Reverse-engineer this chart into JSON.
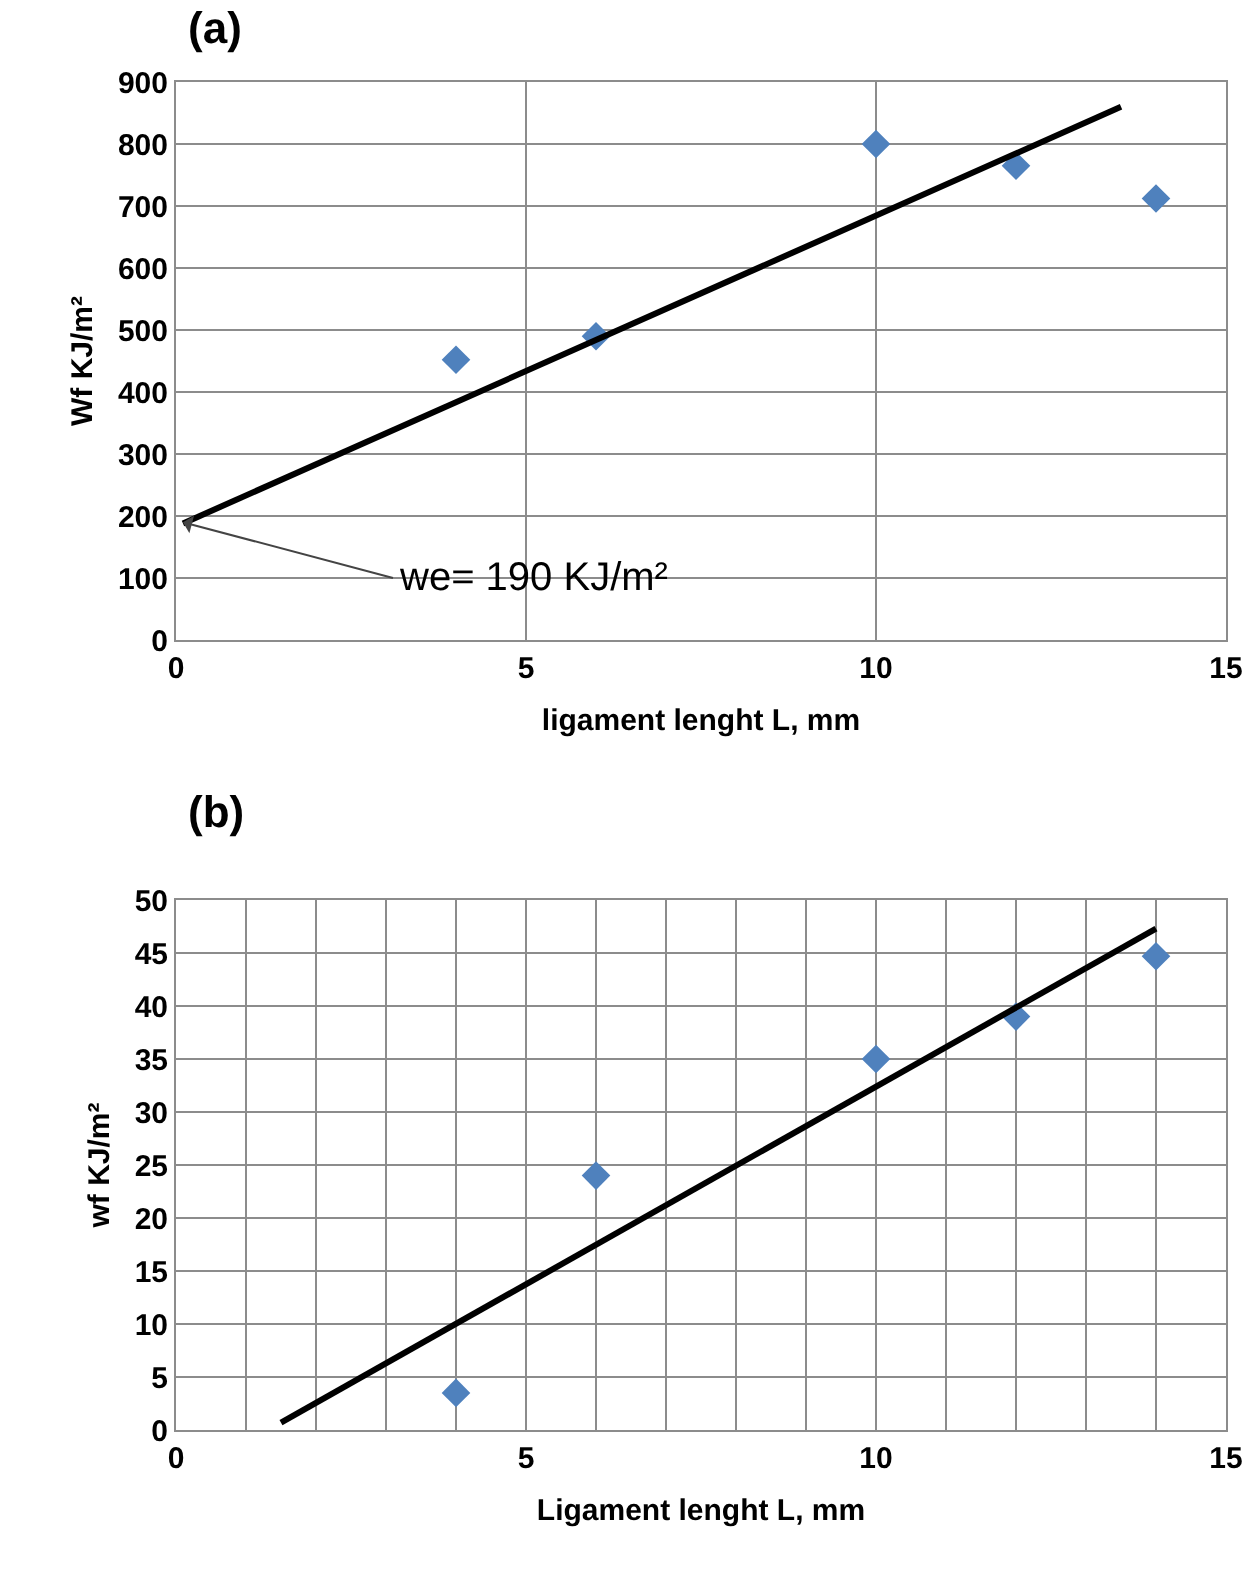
{
  "chart_data": [
    {
      "type": "scatter",
      "title": "(a)",
      "xlabel": "ligament lenght L, mm",
      "ylabel": "Wf KJ/m²",
      "xlim": [
        0,
        15
      ],
      "xticks": [
        0,
        5,
        10,
        15
      ],
      "ylim": [
        0,
        900
      ],
      "yticks": [
        0,
        100,
        200,
        300,
        400,
        500,
        600,
        700,
        800,
        900
      ],
      "grid": true,
      "series": [
        {
          "marker": "diamond",
          "color": "#4f81bd",
          "x": [
            4,
            6,
            10,
            12,
            14
          ],
          "values": [
            452,
            490,
            800,
            765,
            712
          ]
        },
        {
          "type": "line",
          "marker": "none",
          "color": "#000000",
          "x": [
            0.1,
            13.5
          ],
          "values": [
            188,
            860
          ]
        }
      ],
      "annotations": [
        {
          "text": "we= 190 KJ/m²",
          "x": 0.1,
          "y": 190
        }
      ]
    },
    {
      "type": "scatter",
      "title": "(b)",
      "xlabel": "Ligament lenght L, mm",
      "ylabel": "wf KJ/m²",
      "xlim": [
        0,
        15
      ],
      "xticks": [
        0,
        {
          "value": 1,
          "label": null
        },
        {
          "value": 2,
          "label": null
        },
        {
          "value": 3,
          "label": null
        },
        {
          "value": 4,
          "label": null
        },
        5,
        {
          "value": 6,
          "label": null
        },
        {
          "value": 7,
          "label": null
        },
        {
          "value": 8,
          "label": null
        },
        {
          "value": 9,
          "label": null
        },
        10,
        {
          "value": 11,
          "label": null
        },
        {
          "value": 12,
          "label": null
        },
        {
          "value": 13,
          "label": null
        },
        {
          "value": 14,
          "label": null
        },
        15
      ],
      "ylim": [
        0,
        50
      ],
      "yticks": [
        0,
        5,
        10,
        15,
        20,
        25,
        30,
        35,
        40,
        45,
        50
      ],
      "grid": true,
      "series": [
        {
          "marker": "diamond",
          "color": "#4f81bd",
          "x": [
            4,
            6,
            10,
            12,
            14
          ],
          "values": [
            3.5,
            24,
            35,
            39,
            44.7
          ]
        },
        {
          "type": "line",
          "marker": "none",
          "color": "#000000",
          "x": [
            1.5,
            14
          ],
          "values": [
            0.7,
            47.3
          ]
        }
      ]
    }
  ]
}
